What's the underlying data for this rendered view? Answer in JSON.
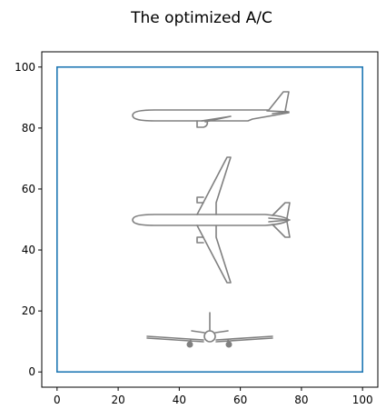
{
  "chart_data": {
    "type": "diagram",
    "title": "The optimized A/C",
    "xlim": [
      -5,
      105
    ],
    "ylim": [
      -5,
      105
    ],
    "x_ticks": [
      0,
      20,
      40,
      60,
      80,
      100
    ],
    "y_ticks": [
      0,
      20,
      40,
      60,
      80,
      100
    ],
    "boundary_box": {
      "x": [
        0,
        100
      ],
      "y": [
        0,
        100
      ],
      "color": "#1f77b4"
    },
    "aircraft_views": [
      {
        "name": "side-view",
        "center": [
          52,
          84
        ]
      },
      {
        "name": "top-view",
        "center": [
          52,
          50
        ]
      },
      {
        "name": "front-view",
        "center": [
          50,
          12
        ]
      }
    ],
    "drawing_color": "#808080"
  }
}
